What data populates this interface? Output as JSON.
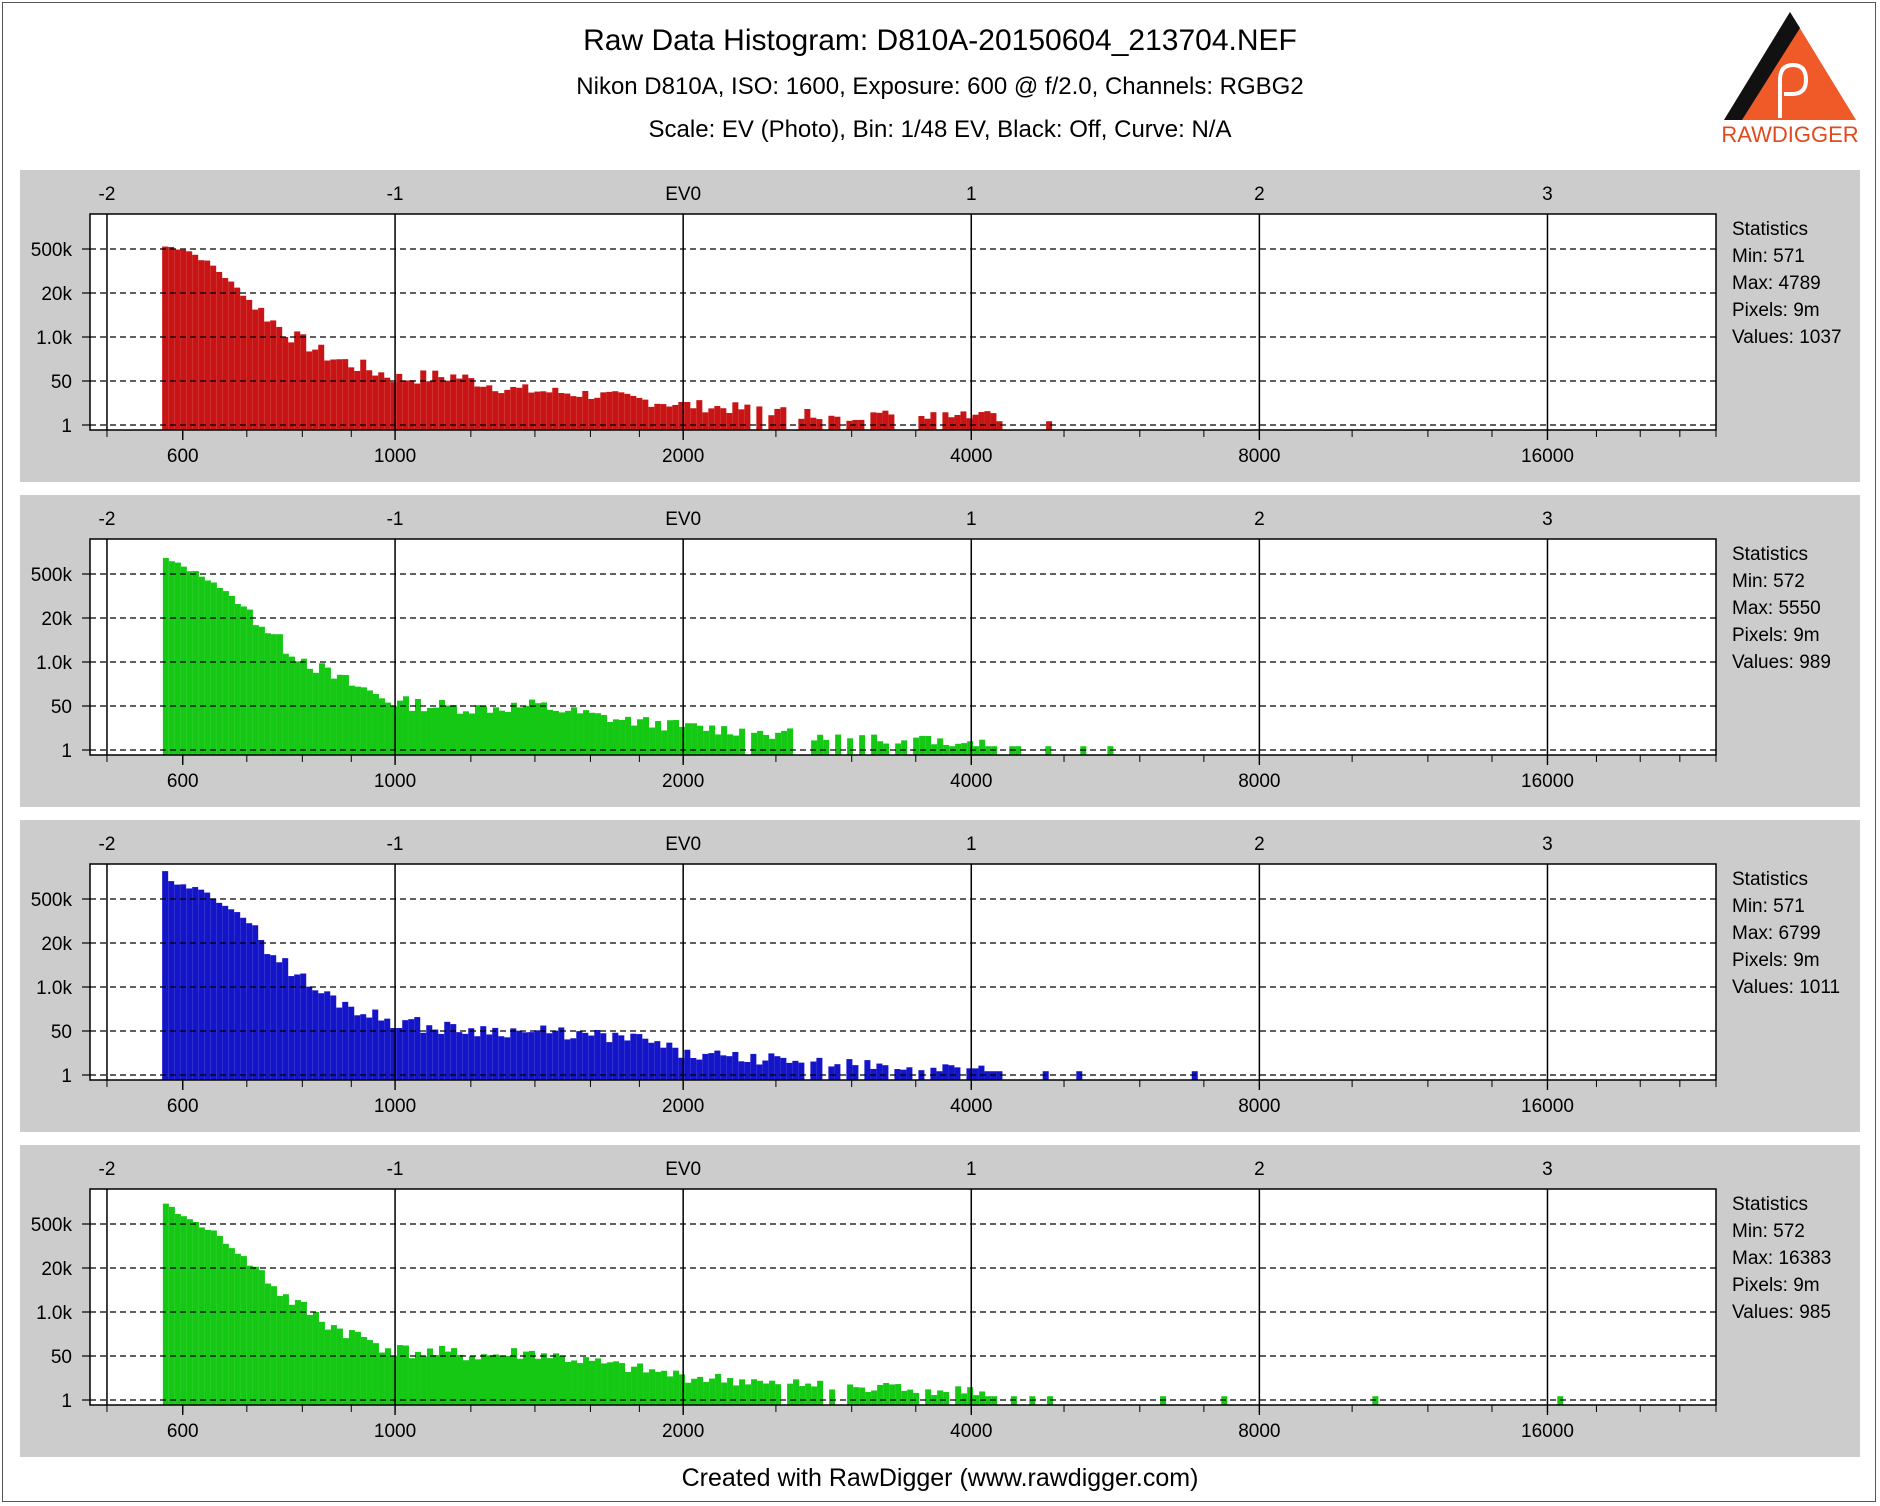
{
  "header": {
    "title": "Raw Data Histogram: D810A-20150604_213704.NEF",
    "camera_line": "Nikon D810A, ISO: 1600, Exposure: 600 @ f/2.0, Channels: RGBG2",
    "scale_line": "Scale: EV (Photo), Bin: 1/48 EV, Black: Off, Curve: N/A"
  },
  "logo": {
    "text": "RAWDIGGER",
    "colors": {
      "triangle": "#f05a28",
      "dark": "#111111"
    }
  },
  "footer": {
    "text": "Created with RawDigger (www.rawdigger.com)"
  },
  "colors": {
    "red": "#c81414",
    "green": "#14c814",
    "blue": "#1414c8",
    "panel_bg": "#cccccc",
    "plot_bg": "#ffffff"
  },
  "chart_data": [
    {
      "type": "bar",
      "channel": "R",
      "color": "#c81414",
      "x_scale": "log2",
      "xlim": [
        480,
        24000
      ],
      "x_ticks": [
        600,
        1000,
        2000,
        4000,
        8000,
        16000
      ],
      "ev_ticks": [
        "-2",
        "-1",
        "EV0",
        "1",
        "2",
        "3"
      ],
      "ev_values": [
        -2,
        -1,
        0,
        1,
        2,
        3
      ],
      "ev_zero_value": 2000,
      "y_scale": "log",
      "y_ticks": [
        "500k",
        "20k",
        "1.0k",
        "50",
        "1"
      ],
      "y_tick_values": [
        500000,
        20000,
        1000,
        50,
        1
      ],
      "grid": "dashed horizontal, solid vertical at EV ticks",
      "bins_per_ev": 48,
      "profile": [
        [
          571,
          600000
        ],
        [
          600,
          500000
        ],
        [
          640,
          150000
        ],
        [
          700,
          12000
        ],
        [
          760,
          1500
        ],
        [
          850,
          250
        ],
        [
          1000,
          60
        ],
        [
          1150,
          70
        ],
        [
          1300,
          25
        ],
        [
          1600,
          15
        ],
        [
          2000,
          6
        ],
        [
          2600,
          3
        ],
        [
          3500,
          2
        ],
        [
          4000,
          2
        ]
      ],
      "range": [
        571,
        4250
      ],
      "extra_bars": [
        [
          4789,
          1
        ]
      ],
      "statistics": {
        "title": "Statistics",
        "min": "Min: 571",
        "max": "Max: 4789",
        "pixels": "Pixels: 9m",
        "values": "Values: 1037"
      }
    },
    {
      "type": "bar",
      "channel": "G",
      "color": "#14c814",
      "x_scale": "log2",
      "xlim": [
        480,
        24000
      ],
      "x_ticks": [
        600,
        1000,
        2000,
        4000,
        8000,
        16000
      ],
      "ev_ticks": [
        "-2",
        "-1",
        "EV0",
        "1",
        "2",
        "3"
      ],
      "ev_values": [
        -2,
        -1,
        0,
        1,
        2,
        3
      ],
      "ev_zero_value": 2000,
      "y_scale": "log",
      "y_ticks": [
        "500k",
        "20k",
        "1.0k",
        "50",
        "1"
      ],
      "y_tick_values": [
        500000,
        20000,
        1000,
        50,
        1
      ],
      "grid": "dashed horizontal, solid vertical at EV ticks",
      "bins_per_ev": 48,
      "profile": [
        [
          572,
          1500000
        ],
        [
          600,
          800000
        ],
        [
          640,
          300000
        ],
        [
          700,
          30000
        ],
        [
          760,
          3000
        ],
        [
          850,
          400
        ],
        [
          1000,
          60
        ],
        [
          1200,
          40
        ],
        [
          1400,
          50
        ],
        [
          1700,
          15
        ],
        [
          2000,
          8
        ],
        [
          2600,
          4
        ],
        [
          3200,
          3
        ],
        [
          4000,
          2
        ],
        [
          4400,
          1
        ]
      ],
      "range": [
        572,
        4450
      ],
      "extra_bars": [
        [
          4780,
          1
        ],
        [
          5200,
          1
        ],
        [
          5550,
          1
        ]
      ],
      "statistics": {
        "title": "Statistics",
        "min": "Min: 572",
        "max": "Max: 5550",
        "pixels": "Pixels: 9m",
        "values": "Values: 989"
      }
    },
    {
      "type": "bar",
      "channel": "B",
      "color": "#1414c8",
      "x_scale": "log2",
      "xlim": [
        480,
        24000
      ],
      "x_ticks": [
        600,
        1000,
        2000,
        4000,
        8000,
        16000
      ],
      "ev_ticks": [
        "-2",
        "-1",
        "EV0",
        "1",
        "2",
        "3"
      ],
      "ev_values": [
        -2,
        -1,
        0,
        1,
        2,
        3
      ],
      "ev_zero_value": 2000,
      "y_scale": "log",
      "y_ticks": [
        "500k",
        "20k",
        "1.0k",
        "50",
        "1"
      ],
      "y_tick_values": [
        500000,
        20000,
        1000,
        50,
        1
      ],
      "grid": "dashed horizontal, solid vertical at EV ticks",
      "bins_per_ev": 48,
      "profile": [
        [
          571,
          4000000
        ],
        [
          580,
          1500000
        ],
        [
          620,
          1000000
        ],
        [
          680,
          200000
        ],
        [
          740,
          10000
        ],
        [
          820,
          800
        ],
        [
          950,
          130
        ],
        [
          1100,
          60
        ],
        [
          1400,
          45
        ],
        [
          1800,
          25
        ],
        [
          2000,
          6
        ],
        [
          2500,
          4
        ],
        [
          3200,
          2
        ],
        [
          4000,
          1.6
        ],
        [
          4300,
          1
        ]
      ],
      "range": [
        571,
        4300
      ],
      "extra_bars": [
        [
          4750,
          1
        ],
        [
          5150,
          1
        ],
        [
          6799,
          1
        ]
      ],
      "statistics": {
        "title": "Statistics",
        "min": "Min: 571",
        "max": "Max: 6799",
        "pixels": "Pixels: 9m",
        "values": "Values: 1011"
      }
    },
    {
      "type": "bar",
      "channel": "G2",
      "color": "#14c814",
      "x_scale": "log2",
      "xlim": [
        480,
        24000
      ],
      "x_ticks": [
        600,
        1000,
        2000,
        4000,
        8000,
        16000
      ],
      "ev_ticks": [
        "-2",
        "-1",
        "EV0",
        "1",
        "2",
        "3"
      ],
      "ev_values": [
        -2,
        -1,
        0,
        1,
        2,
        3
      ],
      "ev_zero_value": 2000,
      "y_scale": "log",
      "y_ticks": [
        "500k",
        "20k",
        "1.0k",
        "50",
        "1"
      ],
      "y_tick_values": [
        500000,
        20000,
        1000,
        50,
        1
      ],
      "grid": "dashed horizontal, solid vertical at EV ticks",
      "bins_per_ev": 48,
      "profile": [
        [
          572,
          2000000
        ],
        [
          600,
          800000
        ],
        [
          640,
          300000
        ],
        [
          700,
          30000
        ],
        [
          760,
          3000
        ],
        [
          850,
          400
        ],
        [
          1000,
          70
        ],
        [
          1200,
          50
        ],
        [
          1400,
          60
        ],
        [
          1700,
          20
        ],
        [
          2000,
          8
        ],
        [
          2600,
          4
        ],
        [
          3200,
          3
        ],
        [
          4000,
          2
        ],
        [
          4250,
          1
        ]
      ],
      "range": [
        572,
        4250
      ],
      "extra_bars": [
        [
          4400,
          1
        ],
        [
          4600,
          1
        ],
        [
          4800,
          1
        ],
        [
          6300,
          1
        ],
        [
          7300,
          1
        ],
        [
          10500,
          1
        ],
        [
          16383,
          1
        ]
      ],
      "statistics": {
        "title": "Statistics",
        "min": "Min: 572",
        "max": "Max: 16383",
        "pixels": "Pixels: 9m",
        "values": "Values: 985"
      }
    }
  ]
}
